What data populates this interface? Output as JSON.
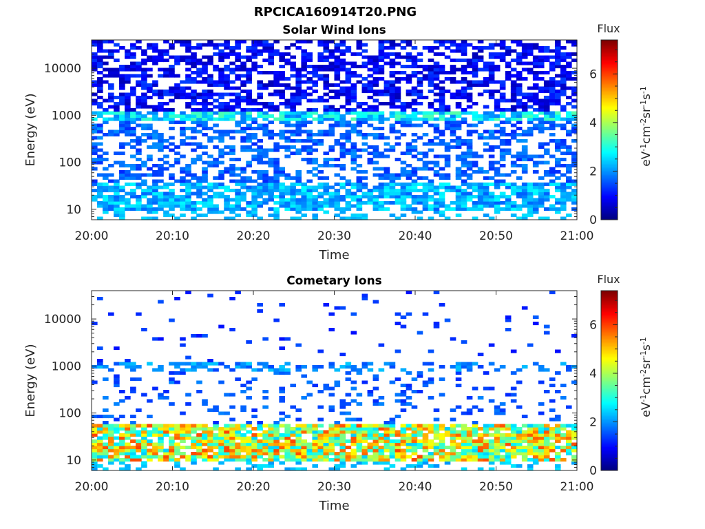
{
  "title": "RPCICA160914T20.PNG",
  "chart_data": [
    {
      "type": "heatmap",
      "title": "Solar Wind Ions",
      "xlabel": "Time",
      "ylabel": "Energy (eV)",
      "x_ticks": [
        "20:00",
        "20:10",
        "20:20",
        "20:30",
        "20:40",
        "20:50",
        "21:00"
      ],
      "xlim": [
        "20:00",
        "21:00"
      ],
      "y_scale": "log",
      "y_ticks": [
        10,
        100,
        1000,
        10000
      ],
      "ylim": [
        6,
        40000
      ],
      "colorbar": {
        "label": "Flux",
        "unit": "eV-1cm-2sr-1s-1",
        "range": [
          0,
          7.4
        ],
        "ticks": [
          0,
          2,
          4,
          6
        ],
        "colormap": "jet"
      },
      "grid": false,
      "bands": [
        {
          "energy_range": [
            6,
            10
          ],
          "flux_range": [
            2.0,
            2.6
          ],
          "occupancy": 0.35
        },
        {
          "energy_range": [
            10,
            40
          ],
          "flux_range": [
            1.6,
            2.8
          ],
          "occupancy": 0.75
        },
        {
          "energy_range": [
            40,
            800
          ],
          "flux_range": [
            1.2,
            2.0
          ],
          "occupancy": 0.45
        },
        {
          "energy_range": [
            800,
            1200
          ],
          "flux_range": [
            1.8,
            3.4
          ],
          "occupancy": 0.8
        },
        {
          "energy_range": [
            1200,
            40000
          ],
          "flux_range": [
            0.4,
            1.4
          ],
          "occupancy": 0.55
        }
      ]
    },
    {
      "type": "heatmap",
      "title": "Cometary Ions",
      "xlabel": "Time",
      "ylabel": "Energy (eV)",
      "x_ticks": [
        "20:00",
        "20:10",
        "20:20",
        "20:30",
        "20:40",
        "20:50",
        "21:00"
      ],
      "xlim": [
        "20:00",
        "21:00"
      ],
      "y_scale": "log",
      "y_ticks": [
        10,
        100,
        1000,
        10000
      ],
      "ylim": [
        6,
        40000
      ],
      "colorbar": {
        "label": "Flux",
        "unit": "eV-1cm-2sr-1s-1",
        "range": [
          0,
          7.4
        ],
        "ticks": [
          0,
          2,
          4,
          6
        ],
        "colormap": "jet"
      },
      "grid": false,
      "bands": [
        {
          "energy_range": [
            6,
            10
          ],
          "flux_range": [
            2.0,
            2.6
          ],
          "occupancy": 0.3
        },
        {
          "energy_range": [
            10,
            60
          ],
          "flux_range": [
            2.4,
            6.0
          ],
          "occupancy": 0.85
        },
        {
          "energy_range": [
            60,
            800
          ],
          "flux_range": [
            1.2,
            1.9
          ],
          "occupancy": 0.15
        },
        {
          "energy_range": [
            800,
            1200
          ],
          "flux_range": [
            1.4,
            2.4
          ],
          "occupancy": 0.4
        },
        {
          "energy_range": [
            1200,
            40000
          ],
          "flux_range": [
            1.0,
            1.6
          ],
          "occupancy": 0.03
        }
      ]
    }
  ]
}
